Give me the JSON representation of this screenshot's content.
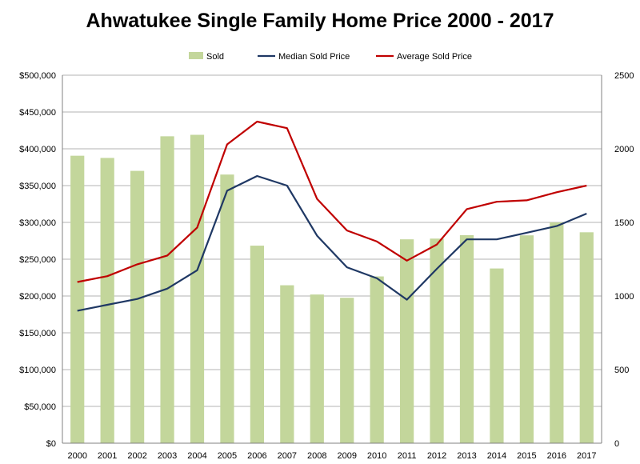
{
  "chart_data": {
    "type": "bar",
    "title": "Ahwatukee Single Family Home Price 2000 - 2017",
    "categories": [
      "2000",
      "2001",
      "2002",
      "2003",
      "2004",
      "2005",
      "2006",
      "2007",
      "2008",
      "2009",
      "2010",
      "2011",
      "2012",
      "2013",
      "2014",
      "2015",
      "2016",
      "2017"
    ],
    "series": [
      {
        "name": "Sold",
        "type": "bar",
        "axis": "right",
        "color": "#c3d69b",
        "values": [
          1953,
          1938,
          1850,
          2085,
          2095,
          1825,
          1342,
          1073,
          1010,
          988,
          1133,
          1385,
          1390,
          1413,
          1187,
          1412,
          1500,
          1433
        ]
      },
      {
        "name": "Median Sold Price",
        "type": "line",
        "axis": "left",
        "color": "#1f3864",
        "values": [
          180000,
          188000,
          196000,
          210000,
          235000,
          343000,
          363000,
          350000,
          282000,
          239000,
          224000,
          195000,
          237000,
          277000,
          277000,
          286000,
          295000,
          312000
        ]
      },
      {
        "name": "Average Sold Price",
        "type": "line",
        "axis": "left",
        "color": "#c00000",
        "values": [
          219000,
          227000,
          243000,
          255000,
          293000,
          406000,
          437000,
          428000,
          332000,
          289000,
          274000,
          248000,
          270000,
          318000,
          328000,
          330000,
          341000,
          350000
        ]
      }
    ],
    "y_left": {
      "min": 0,
      "max": 500000,
      "ticks": [
        0,
        50000,
        100000,
        150000,
        200000,
        250000,
        300000,
        350000,
        400000,
        450000,
        500000
      ],
      "tick_labels": [
        "$0",
        "$50,000",
        "$100,000",
        "$150,000",
        "$200,000",
        "$250,000",
        "$300,000",
        "$350,000",
        "$400,000",
        "$450,000",
        "$500,000"
      ]
    },
    "y_right": {
      "min": 0,
      "max": 2500,
      "ticks": [
        0,
        500,
        1000,
        1500,
        2000,
        2500
      ],
      "tick_labels": [
        "0",
        "500",
        "1000",
        "1500",
        "2000",
        "2500"
      ]
    },
    "grid": true,
    "legend": "top-center"
  }
}
